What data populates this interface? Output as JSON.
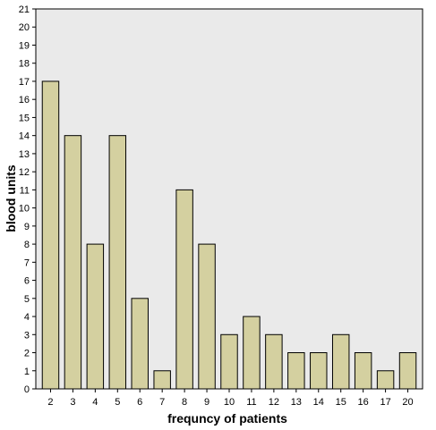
{
  "chart_data": {
    "type": "bar",
    "title": "",
    "xlabel": "frequncy of patients",
    "ylabel": "blood units",
    "categories": [
      "2",
      "3",
      "4",
      "5",
      "6",
      "7",
      "8",
      "9",
      "10",
      "11",
      "12",
      "13",
      "14",
      "15",
      "16",
      "17",
      "20"
    ],
    "values": [
      17,
      14,
      8,
      14,
      5,
      1,
      11,
      8,
      3,
      4,
      3,
      2,
      2,
      3,
      2,
      1,
      2
    ],
    "ylim": [
      0,
      21
    ],
    "yticks": [
      0,
      1,
      2,
      3,
      4,
      5,
      6,
      7,
      8,
      9,
      10,
      11,
      12,
      13,
      14,
      15,
      16,
      17,
      18,
      19,
      20,
      21
    ],
    "grid": false,
    "legend": "none",
    "colors": {
      "bar_fill": "#D4D0A0",
      "bar_stroke": "#000000",
      "plot_background": "#EAEAEA",
      "page_background": "#FFFFFF"
    }
  }
}
